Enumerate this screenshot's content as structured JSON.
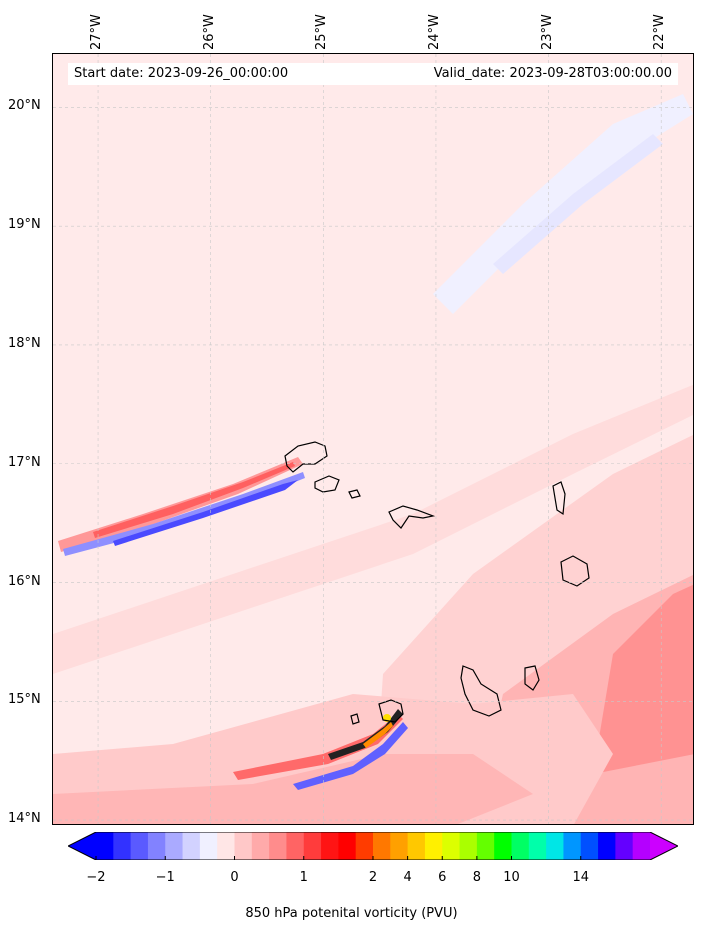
{
  "header": {
    "start_date": "Start date: 2023-09-26_00:00:00",
    "valid_date": "Valid_date: 2023-09-28T03:00:00.00"
  },
  "map": {
    "lon_range": [
      -27.4,
      -21.7
    ],
    "lat_range": [
      13.95,
      20.45
    ],
    "lon_ticks": [
      {
        "value": -27,
        "label": "27°W"
      },
      {
        "value": -26,
        "label": "26°W"
      },
      {
        "value": -25,
        "label": "25°W"
      },
      {
        "value": -24,
        "label": "24°W"
      },
      {
        "value": -23,
        "label": "23°W"
      },
      {
        "value": -22,
        "label": "22°W"
      }
    ],
    "lat_ticks": [
      {
        "value": 20,
        "label": "20°N"
      },
      {
        "value": 19,
        "label": "19°N"
      },
      {
        "value": 18,
        "label": "18°N"
      },
      {
        "value": 17,
        "label": "17°N"
      },
      {
        "value": 16,
        "label": "16°N"
      },
      {
        "value": 15,
        "label": "15°N"
      },
      {
        "value": 14,
        "label": "14°N"
      }
    ],
    "grid": true
  },
  "colorbar": {
    "label": "850 hPa potenital vorticity (PVU)",
    "tick_labels": [
      "−2",
      "−1",
      "0",
      "1",
      "2",
      "4",
      "6",
      "8",
      "10",
      "14"
    ],
    "colors": [
      "#0000ff",
      "#3232ff",
      "#5a5aff",
      "#8282ff",
      "#aaaaff",
      "#d2d2ff",
      "#f0f0ff",
      "#ffe6e6",
      "#ffc8c8",
      "#ffaaaa",
      "#ff8c8c",
      "#ff6464",
      "#ff3c3c",
      "#ff1414",
      "#ff0000",
      "#ff3c00",
      "#ff7800",
      "#ffa000",
      "#ffc800",
      "#fff000",
      "#dcff00",
      "#aaff00",
      "#64ff00",
      "#00ff00",
      "#00ff64",
      "#00ffaa",
      "#00e6e6",
      "#0096ff",
      "#0050ff",
      "#0000ff",
      "#6400ff",
      "#b400ff"
    ],
    "extend_min": "#0000ff",
    "extend_max": "#cc00ff"
  }
}
